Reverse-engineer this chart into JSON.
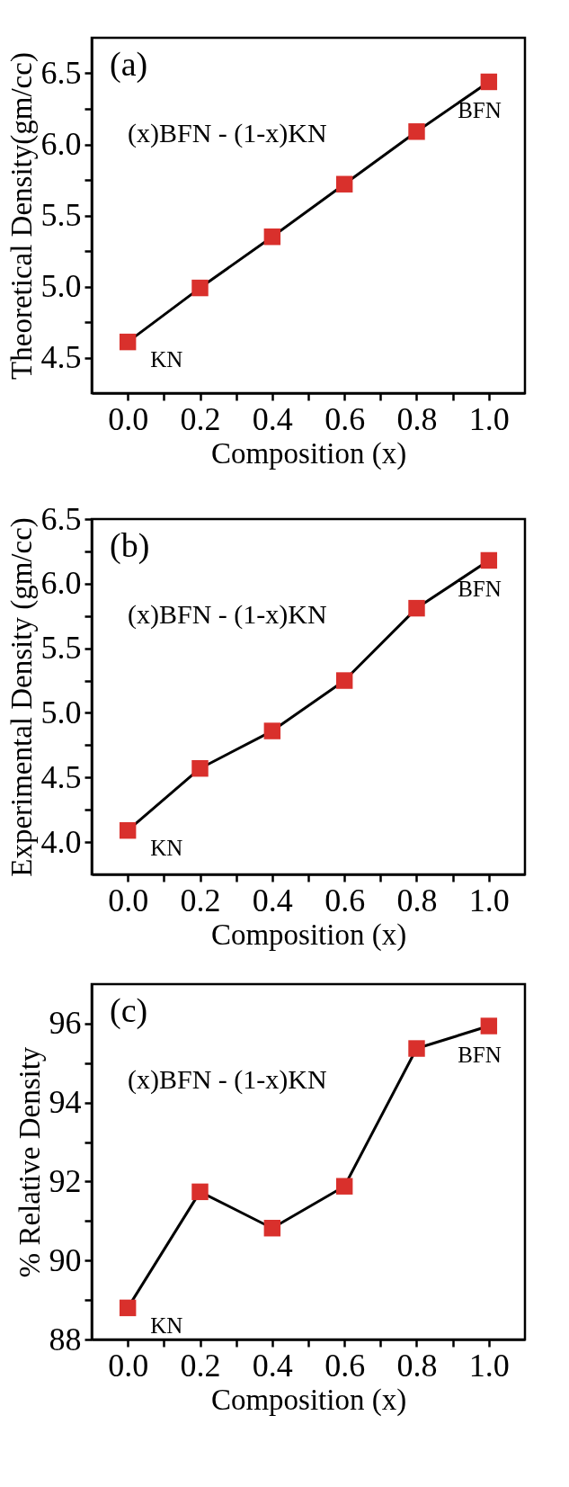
{
  "chart_data": [
    {
      "type": "line",
      "xlabel": "Composition (x)",
      "ylabel": "Theoretical Density(gm/cc)",
      "x": [
        0,
        0.2,
        0.4,
        0.6,
        0.8,
        1.0
      ],
      "series": [
        {
          "color": "#d9302c",
          "values": [
            4.61,
            4.99,
            5.35,
            5.72,
            6.09,
            6.44
          ]
        }
      ],
      "marker": "square",
      "line_style": "solid",
      "grid": false,
      "xlim": [
        -0.1,
        1.1
      ],
      "xticks": [
        {
          "value": 0,
          "label": "0.0"
        },
        {
          "value": 0.1,
          "label": null
        },
        {
          "value": 0.2,
          "label": "0.2"
        },
        {
          "value": 0.3,
          "label": null
        },
        {
          "value": 0.4,
          "label": "0.4"
        },
        {
          "value": 0.5,
          "label": null
        },
        {
          "value": 0.6,
          "label": "0.6"
        },
        {
          "value": 0.7,
          "label": null
        },
        {
          "value": 0.8,
          "label": "0.8"
        },
        {
          "value": 0.9,
          "label": null
        },
        {
          "value": 1.0,
          "label": "1.0"
        }
      ],
      "ylim": [
        4.25,
        6.75
      ],
      "yticks": [
        {
          "value": 4.5,
          "label": "4.5"
        },
        {
          "value": 4.75,
          "label": null
        },
        {
          "value": 5.0,
          "label": "5.0"
        },
        {
          "value": 5.25,
          "label": null
        },
        {
          "value": 5.5,
          "label": "5.5"
        },
        {
          "value": 5.75,
          "label": null
        },
        {
          "value": 6.0,
          "label": "6.0"
        },
        {
          "value": 6.25,
          "label": null
        },
        {
          "value": 6.5,
          "label": "6.5"
        }
      ],
      "annotations": [
        "(a)",
        "(x)BFN - (1-x)KN",
        "KN",
        "BFN"
      ]
    },
    {
      "type": "line",
      "xlabel": "Composition (x)",
      "ylabel": "Experimental Density (gm/cc)",
      "x": [
        0,
        0.2,
        0.4,
        0.6,
        0.8,
        1.0
      ],
      "series": [
        {
          "color": "#d9302c",
          "values": [
            4.09,
            4.57,
            4.86,
            5.25,
            5.81,
            6.18
          ]
        }
      ],
      "marker": "square",
      "line_style": "solid",
      "grid": false,
      "xlim": [
        -0.1,
        1.1
      ],
      "xticks": [
        {
          "value": 0,
          "label": "0.0"
        },
        {
          "value": 0.1,
          "label": null
        },
        {
          "value": 0.2,
          "label": "0.2"
        },
        {
          "value": 0.3,
          "label": null
        },
        {
          "value": 0.4,
          "label": "0.4"
        },
        {
          "value": 0.5,
          "label": null
        },
        {
          "value": 0.6,
          "label": "0.6"
        },
        {
          "value": 0.7,
          "label": null
        },
        {
          "value": 0.8,
          "label": "0.8"
        },
        {
          "value": 0.9,
          "label": null
        },
        {
          "value": 1.0,
          "label": "1.0"
        }
      ],
      "ylim": [
        3.75,
        6.5
      ],
      "yticks": [
        {
          "value": 4.0,
          "label": "4.0"
        },
        {
          "value": 4.25,
          "label": null
        },
        {
          "value": 4.5,
          "label": "4.5"
        },
        {
          "value": 4.75,
          "label": null
        },
        {
          "value": 5.0,
          "label": "5.0"
        },
        {
          "value": 5.25,
          "label": null
        },
        {
          "value": 5.5,
          "label": "5.5"
        },
        {
          "value": 5.75,
          "label": null
        },
        {
          "value": 6.0,
          "label": "6.0"
        },
        {
          "value": 6.25,
          "label": null
        },
        {
          "value": 6.5,
          "label": "6.5"
        }
      ],
      "annotations": [
        "(b)",
        "(x)BFN - (1-x)KN",
        "KN",
        "BFN"
      ]
    },
    {
      "type": "line",
      "xlabel": "Composition (x)",
      "ylabel": "% Relative Density",
      "x": [
        0,
        0.2,
        0.4,
        0.6,
        0.8,
        1.0
      ],
      "series": [
        {
          "color": "#d9302c",
          "values": [
            88.8,
            91.74,
            90.82,
            91.88,
            95.37,
            95.94
          ]
        }
      ],
      "marker": "square",
      "line_style": "solid",
      "grid": false,
      "xlim": [
        -0.1,
        1.1
      ],
      "xticks": [
        {
          "value": 0,
          "label": "0.0"
        },
        {
          "value": 0.1,
          "label": null
        },
        {
          "value": 0.2,
          "label": "0.2"
        },
        {
          "value": 0.3,
          "label": null
        },
        {
          "value": 0.4,
          "label": "0.4"
        },
        {
          "value": 0.5,
          "label": null
        },
        {
          "value": 0.6,
          "label": "0.6"
        },
        {
          "value": 0.7,
          "label": null
        },
        {
          "value": 0.8,
          "label": "0.8"
        },
        {
          "value": 0.9,
          "label": null
        },
        {
          "value": 1.0,
          "label": "1.0"
        }
      ],
      "ylim": [
        88,
        97
      ],
      "yticks": [
        {
          "value": 88,
          "label": "88"
        },
        {
          "value": 89,
          "label": null
        },
        {
          "value": 90,
          "label": "90"
        },
        {
          "value": 91,
          "label": null
        },
        {
          "value": 92,
          "label": "92"
        },
        {
          "value": 93,
          "label": null
        },
        {
          "value": 94,
          "label": "94"
        },
        {
          "value": 95,
          "label": null
        },
        {
          "value": 96,
          "label": "96"
        }
      ],
      "annotations": [
        "(c)",
        "(x)BFN - (1-x)KN",
        "KN",
        "BFN"
      ]
    }
  ]
}
